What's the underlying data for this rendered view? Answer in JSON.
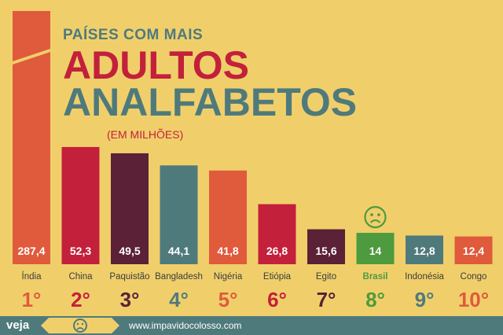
{
  "title": {
    "pre": "PAÍSES COM MAIS",
    "main1": "ADULTOS",
    "main2": "ANALFABETOS",
    "subtitle": "(EM MILHÕES)"
  },
  "footer": {
    "logo": "veja",
    "url": "www.impavidocolosso.com",
    "badge_icon": "sad-face-icon"
  },
  "highlight_icon": "sad-face-icon",
  "colors": {
    "background": "#f0cf6b",
    "orange": "#e05a3c",
    "red": "#c3203b",
    "plum": "#5a2137",
    "teal": "#4f7a7c",
    "green": "#4e9a3e",
    "white": "#ffffff"
  },
  "chart_data": {
    "type": "bar",
    "categories": [
      "Índia",
      "China",
      "Paquistão",
      "Bangladesh",
      "Nigéria",
      "Etiópia",
      "Egito",
      "Brasil",
      "Indonésia",
      "Congo"
    ],
    "values": [
      287.4,
      52.3,
      49.5,
      44.1,
      41.8,
      26.8,
      15.6,
      14,
      12.8,
      12.4
    ],
    "value_labels": [
      "287,4",
      "52,3",
      "49,5",
      "44,1",
      "41,8",
      "26,8",
      "15,6",
      "14",
      "12,8",
      "12,4"
    ],
    "ranks": [
      "1°",
      "2°",
      "3°",
      "4°",
      "5°",
      "6°",
      "7°",
      "8°",
      "9°",
      "10°"
    ],
    "bar_colors": [
      "#e05a3c",
      "#c3203b",
      "#5a2137",
      "#4f7a7c",
      "#e05a3c",
      "#c3203b",
      "#5a2137",
      "#4e9a3e",
      "#4f7a7c",
      "#e05a3c"
    ],
    "rank_colors": [
      "#e05a3c",
      "#c3203b",
      "#5a2137",
      "#4f7a7c",
      "#e05a3c",
      "#c3203b",
      "#5a2137",
      "#4e9a3e",
      "#4f7a7c",
      "#e05a3c"
    ],
    "highlight": "Brasil",
    "first_bar_truncated": true,
    "xlabel": "",
    "ylabel": "",
    "ylim": [
      0,
      60
    ],
    "grid": false,
    "legend": "none"
  }
}
